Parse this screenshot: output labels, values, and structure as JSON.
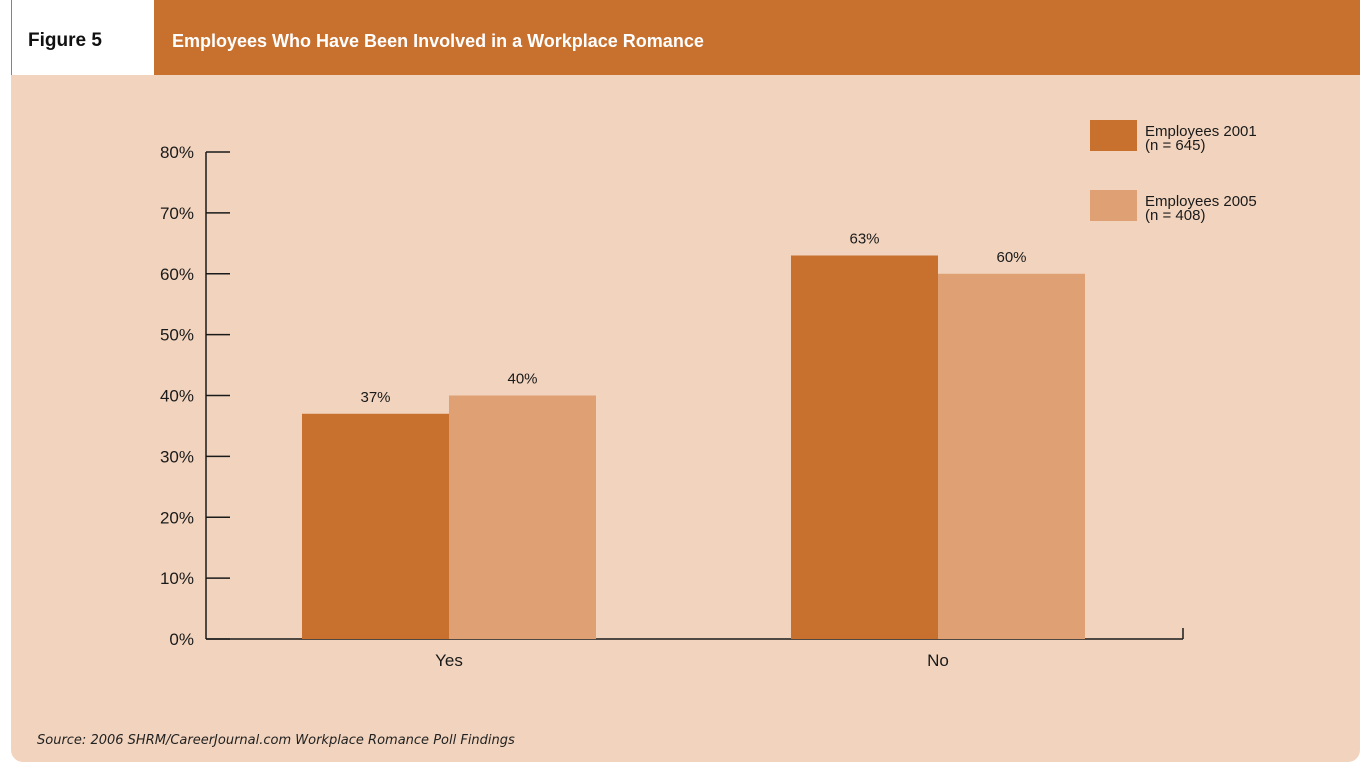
{
  "header": {
    "figure_label": "Figure 5",
    "title": "Employees Who Have Been Involved in a Workplace Romance"
  },
  "source": "Source: 2006 SHRM/CareerJournal.com Workplace Romance Poll Findings",
  "colors": {
    "header_bg": "#c8702e",
    "panel_bg": "#f2d4be",
    "series_2001": "#c8702e",
    "series_2005": "#dfa174"
  },
  "chart_data": {
    "type": "bar",
    "categories": [
      "Yes",
      "No"
    ],
    "series": [
      {
        "name": "Employees 2001",
        "sample": "(n = 645)",
        "values": [
          37,
          63
        ],
        "labels": [
          "37%",
          "63%"
        ]
      },
      {
        "name": "Employees 2005",
        "sample": "(n = 408)",
        "values": [
          40,
          60
        ],
        "labels": [
          "40%",
          "60%"
        ]
      }
    ],
    "ylim": [
      0,
      80
    ],
    "yticks": [
      "0%",
      "10%",
      "20%",
      "30%",
      "40%",
      "50%",
      "60%",
      "70%",
      "80%"
    ],
    "legend_position": "top-right",
    "grid": false
  }
}
